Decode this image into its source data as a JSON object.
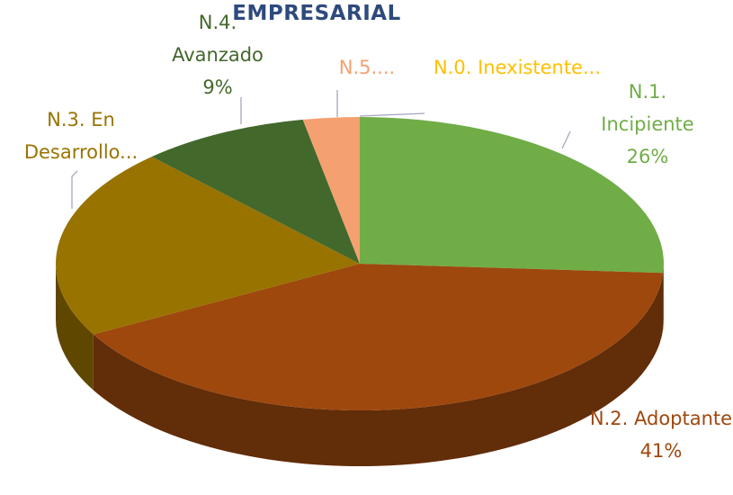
{
  "chart_data": {
    "type": "pie3d",
    "title": "EMPRESARIAL",
    "categories": [
      "N.0. Inexistente...",
      "N.1. Incipiente",
      "N.2. Adoptante",
      "N.3. En Desarrollo...",
      "N.4. Avanzado",
      "N.5...."
    ],
    "values": [
      0,
      26,
      41,
      21,
      9,
      3
    ],
    "value_labels": [
      null,
      "26%",
      "41%",
      null,
      "9%",
      null
    ],
    "colors": [
      "#ffc000",
      "#70ad47",
      "#9e480e",
      "#997300",
      "#43682b",
      "#f4a070"
    ]
  }
}
